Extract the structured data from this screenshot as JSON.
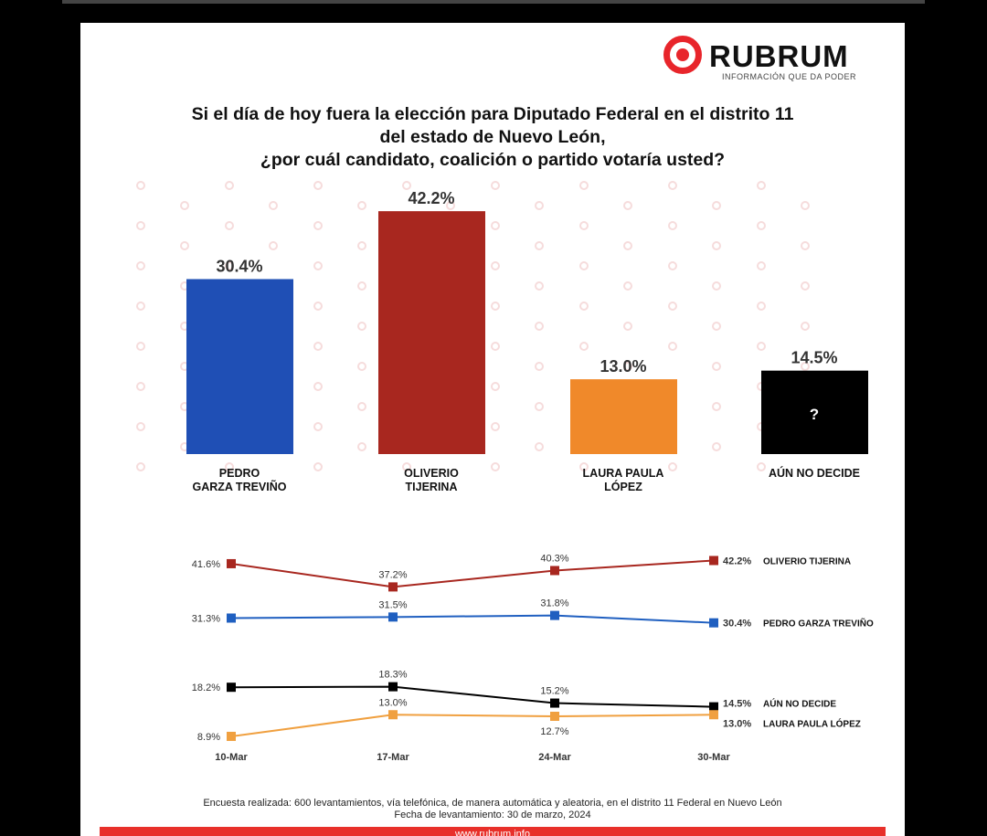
{
  "brand": {
    "name": "RUBRUM",
    "tagline": "INFORMACIÓN QUE DA PODER",
    "accent": "#e8252b"
  },
  "title": [
    "Si el día de hoy fuera la elección para Diputado Federal en el distrito 11",
    "del estado de Nuevo León,",
    "¿por cuál candidato, coalición o partido votaría usted?"
  ],
  "chart_data": [
    {
      "type": "bar",
      "categories": [
        "PEDRO GARZA TREVIÑO",
        "OLIVERIO TIJERINA",
        "LAURA PAULA LÓPEZ",
        "AÚN NO DECIDE"
      ],
      "labels": [
        [
          "PEDRO",
          "GARZA TREVIÑO"
        ],
        [
          "OLIVERIO",
          "TIJERINA"
        ],
        [
          "LAURA PAULA",
          "LÓPEZ"
        ],
        [
          "AÚN NO DECIDE"
        ]
      ],
      "values": [
        30.4,
        42.2,
        13.0,
        14.5
      ],
      "value_labels": [
        "30.4%",
        "42.2%",
        "13.0%",
        "14.5%"
      ],
      "colors": [
        "#1f4fb5",
        "#a8271f",
        "#f0892a",
        "#000000"
      ]
    },
    {
      "type": "line",
      "x": [
        "10-Mar",
        "17-Mar",
        "24-Mar",
        "30-Mar"
      ],
      "series": [
        {
          "name": "OLIVERIO TIJERINA",
          "values": [
            41.6,
            37.2,
            40.3,
            42.2
          ],
          "labels": [
            "41.6%",
            "37.2%",
            "40.3%",
            "42.2%"
          ],
          "color": "#a8271f"
        },
        {
          "name": "PEDRO GARZA TREVIÑO",
          "values": [
            31.3,
            31.5,
            31.8,
            30.4
          ],
          "labels": [
            "31.3%",
            "31.5%",
            "31.8%",
            "30.4%"
          ],
          "color": "#1f5fc0"
        },
        {
          "name": "AÚN NO DECIDE",
          "values": [
            18.2,
            18.3,
            15.2,
            14.5
          ],
          "labels": [
            "18.2%",
            "18.3%",
            "15.2%",
            "14.5%"
          ],
          "color": "#000000"
        },
        {
          "name": "LAURA PAULA LÓPEZ",
          "values": [
            8.9,
            13.0,
            12.7,
            13.0
          ],
          "labels": [
            "8.9%",
            "13.0%",
            "12.7%",
            "13.0%"
          ],
          "color": "#f0a040"
        }
      ]
    }
  ],
  "footer": {
    "note1": "Encuesta realizada: 600 levantamientos, vía telefónica, de manera automática y aleatoria, en el distrito 11 Federal en Nuevo León",
    "note2": "Fecha de levantamiento: 30 de marzo, 2024",
    "url": "www.rubrum.info"
  }
}
